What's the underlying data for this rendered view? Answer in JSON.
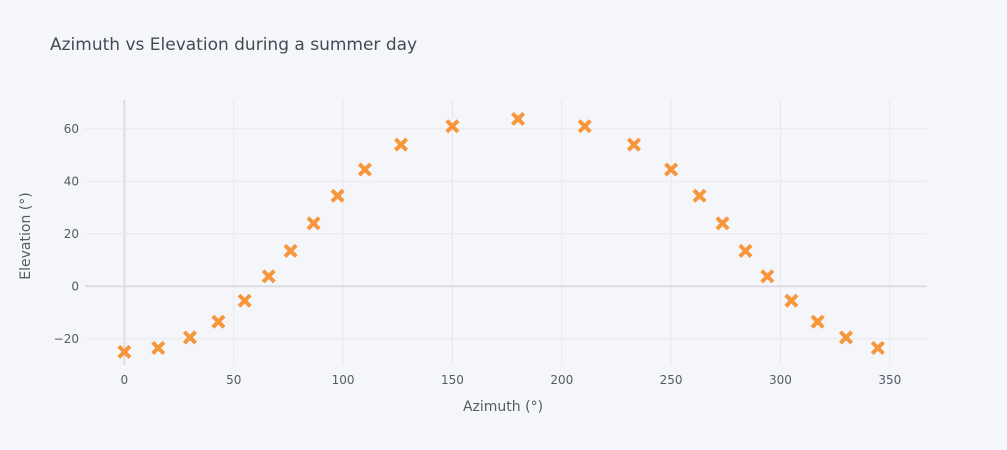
{
  "chart_data": {
    "type": "scatter",
    "title": "Azimuth vs Elevation during a summer day",
    "xlabel": "Azimuth (°)",
    "ylabel": "Elevation (°)",
    "xlim": [
      -18,
      367
    ],
    "ylim": [
      -30,
      71
    ],
    "xticks": [
      0,
      50,
      100,
      150,
      200,
      250,
      300,
      350
    ],
    "yticks": [
      -20,
      0,
      20,
      40,
      60
    ],
    "grid": true,
    "marker": "x",
    "marker_color": "#f7963a",
    "points": [
      {
        "x": 0,
        "y": -25
      },
      {
        "x": 15.5,
        "y": -23.5
      },
      {
        "x": 30,
        "y": -19.5
      },
      {
        "x": 43,
        "y": -13.5
      },
      {
        "x": 55,
        "y": -5.5
      },
      {
        "x": 66,
        "y": 3.8
      },
      {
        "x": 76,
        "y": 13.5
      },
      {
        "x": 86.5,
        "y": 24
      },
      {
        "x": 97.5,
        "y": 34.5
      },
      {
        "x": 110,
        "y": 44.5
      },
      {
        "x": 126.5,
        "y": 54
      },
      {
        "x": 150,
        "y": 61
      },
      {
        "x": 180,
        "y": 63.8
      },
      {
        "x": 210.5,
        "y": 61
      },
      {
        "x": 233,
        "y": 54
      },
      {
        "x": 250,
        "y": 44.5
      },
      {
        "x": 263,
        "y": 34.5
      },
      {
        "x": 273.5,
        "y": 24
      },
      {
        "x": 284,
        "y": 13.5
      },
      {
        "x": 294,
        "y": 3.8
      },
      {
        "x": 305,
        "y": -5.5
      },
      {
        "x": 317,
        "y": -13.5
      },
      {
        "x": 330,
        "y": -19.5
      },
      {
        "x": 344.5,
        "y": -23.5
      }
    ]
  }
}
